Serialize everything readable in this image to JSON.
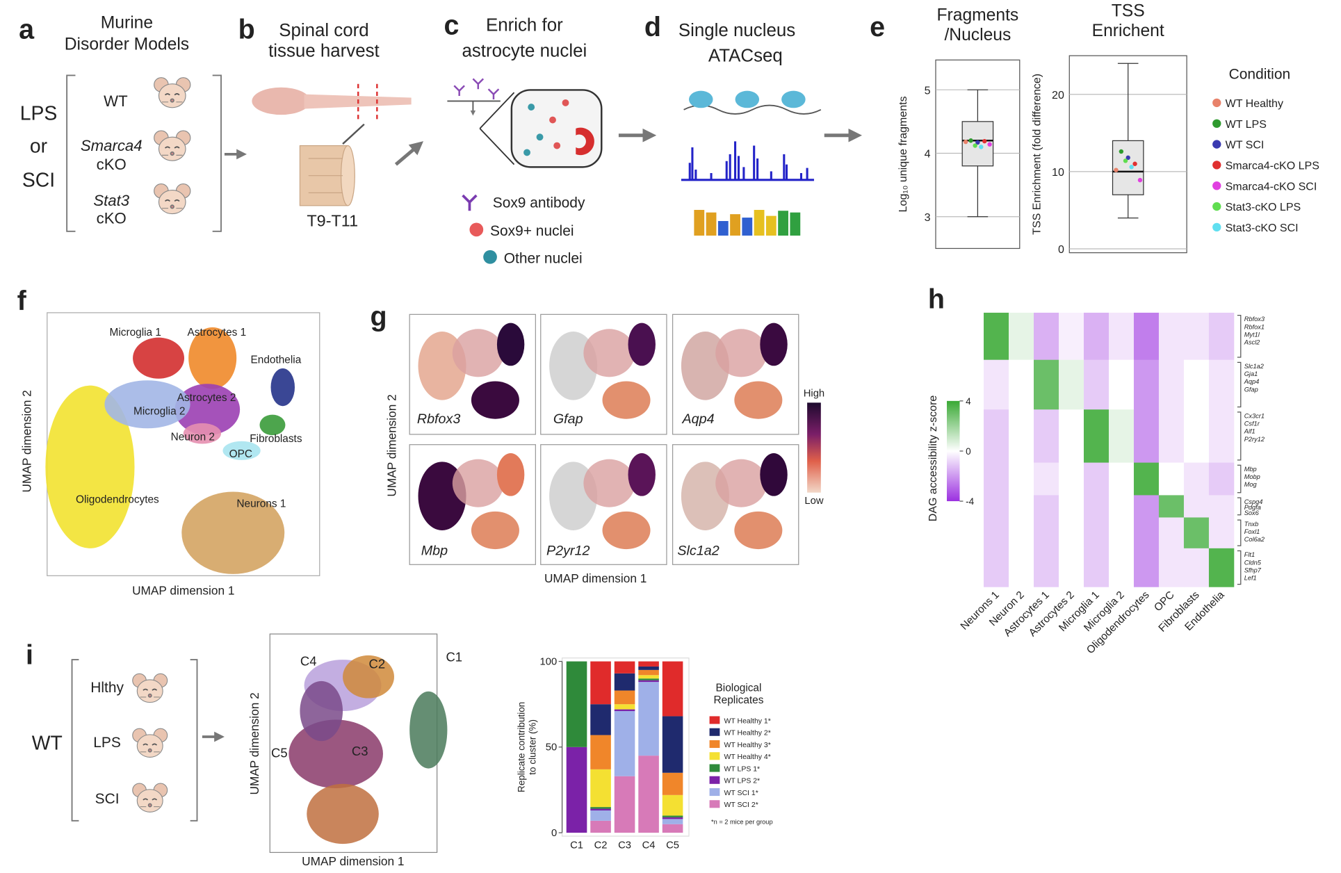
{
  "panel_letters": [
    "a",
    "b",
    "c",
    "d",
    "e",
    "f",
    "g",
    "h",
    "i"
  ],
  "a": {
    "title": [
      "Murine",
      "Disorder Models"
    ],
    "conditions": [
      "LPS",
      "or",
      "SCI"
    ],
    "models": [
      [
        "WT"
      ],
      [
        "Smarca4",
        "cKO"
      ],
      [
        "Stat3",
        "cKO"
      ]
    ]
  },
  "b": {
    "title": [
      "Spinal cord",
      "tissue harvest"
    ],
    "segment": "T9-T11"
  },
  "c": {
    "title": [
      "Enrich for",
      "astrocyte nuclei"
    ],
    "legend": [
      "Sox9 antibody",
      "Sox9+ nuclei",
      "Other nuclei"
    ]
  },
  "d": {
    "title": [
      "Single nucleus",
      "ATACseq"
    ]
  },
  "e_legend": {
    "title": "Condition",
    "items": [
      {
        "name": "WT Healthy",
        "color": "#e8826a"
      },
      {
        "name": "WT LPS",
        "color": "#2e9a2e"
      },
      {
        "name": "WT SCI",
        "color": "#3a3ab0"
      },
      {
        "name": "Smarca4-cKO LPS",
        "color": "#e03030"
      },
      {
        "name": "Smarca4-cKO SCI",
        "color": "#e040e0"
      },
      {
        "name": "Stat3-cKO LPS",
        "color": "#60dd50"
      },
      {
        "name": "Stat3-cKO SCI",
        "color": "#60dff0"
      }
    ]
  },
  "f": {
    "xlabel": "UMAP dimension 1",
    "ylabel": "UMAP dimension 2",
    "clusters": [
      "Microglia 1",
      "Astrocytes 1",
      "Endothelia",
      "Astrocytes 2",
      "Microglia 2",
      "Neuron 2",
      "Fibroblasts",
      "OPC",
      "Oligodendrocytes",
      "Neurons 1"
    ]
  },
  "g": {
    "genes": [
      "Rbfox3",
      "Gfap",
      "Aqp4",
      "Mbp",
      "P2yr12",
      "Slc1a2"
    ],
    "xlabel": "UMAP dimension 1",
    "ylabel": "UMAP dimension 2",
    "colorbar": [
      "High",
      "Low"
    ]
  },
  "i": {
    "group": "WT",
    "conditions": [
      "Hlthy",
      "LPS",
      "SCI"
    ],
    "umap": {
      "clusters": [
        "C4",
        "C2",
        "C1",
        "C5",
        "C3"
      ],
      "xlabel": "UMAP dimension 1",
      "ylabel": "UMAP dimension 2"
    }
  },
  "chart_data": [
    {
      "type": "box",
      "title": [
        "Fragments",
        "/Nucleus"
      ],
      "ylabel": "Log₁₀ unique fragments",
      "ylim": [
        2.5,
        5.47
      ],
      "yticks": [
        3,
        4,
        5
      ],
      "grid": true,
      "whiskers": [
        3.0,
        5.0
      ],
      "quartiles": [
        3.8,
        4.5
      ],
      "median": 4.2,
      "points": [
        4.18,
        4.2,
        4.17,
        4.19,
        4.14,
        4.12,
        4.1
      ]
    },
    {
      "type": "box",
      "title": [
        "TSS",
        "Enrichent"
      ],
      "ylabel": "TSS Enrichment (fold difference)",
      "ylim": [
        -0.5,
        25
      ],
      "yticks": [
        0,
        10,
        20
      ],
      "grid": true,
      "whiskers": [
        4,
        24
      ],
      "quartiles": [
        7,
        14
      ],
      "median": 10,
      "points": [
        10.2,
        12.6,
        11.8,
        11,
        8.9,
        11.4,
        10.6
      ]
    },
    {
      "type": "heatmap",
      "columns": [
        "Neurons 1",
        "Neuron 2",
        "Astrocytes 1",
        "Astrocytes 2",
        "Microglia 1",
        "Microglia 2",
        "Oligodendrocytes",
        "OPC",
        "Fibroblasts",
        "Endothelia"
      ],
      "row_groups": [
        [
          "Rbfox3",
          "Rbfox1",
          "Myt1l",
          "Ascl2"
        ],
        [
          "Slc1a2",
          "Gja1",
          "Aqp4",
          "Gfap"
        ],
        [
          "Cx3cr1",
          "Csf1r",
          "Aif1",
          "P2ry12"
        ],
        [
          "Mbp",
          "Mobp",
          "Mog"
        ],
        [
          "Cspg4",
          "Pdgfa",
          "Sox6"
        ],
        [
          "Tnxb",
          "Foxl1",
          "Col6a2"
        ],
        [
          "Flt1",
          "Cldn5",
          "Sfhp7",
          "Lef1"
        ]
      ],
      "values": [
        [
          3.5,
          0.5,
          -1.5,
          -0.3,
          -1.5,
          -0.5,
          -2.5,
          -0.5,
          -0.5,
          -1
        ],
        [
          -0.5,
          0,
          3,
          0.5,
          -1,
          0,
          -2,
          -0.5,
          0,
          -0.5
        ],
        [
          -1,
          0,
          -1,
          0,
          3.5,
          0.5,
          -2,
          -0.5,
          0,
          -0.5
        ],
        [
          -1,
          0,
          -0.5,
          0,
          -1,
          0,
          3.5,
          0,
          -0.5,
          -1
        ],
        [
          -1,
          0,
          -1,
          0,
          -1,
          0,
          -2,
          3,
          -0.5,
          -0.5
        ],
        [
          -1,
          0,
          -1,
          0,
          -1,
          0,
          -2,
          -0.5,
          3,
          -0.5
        ],
        [
          -1,
          0,
          -1,
          0,
          -1,
          0,
          -2,
          -0.5,
          -0.5,
          3.5
        ]
      ],
      "zlim": [
        -4,
        4
      ],
      "zticks": [
        4,
        0,
        -4
      ],
      "zlabel": "DAG accessibility z-score",
      "colors": [
        "#9b30e0",
        "#ffffff",
        "#3aa935"
      ]
    },
    {
      "type": "bar",
      "stacked": true,
      "categories": [
        "C1",
        "C2",
        "C3",
        "C4",
        "C5"
      ],
      "ylabel": [
        "Replicate contribution",
        "to cluster (%)"
      ],
      "ylim": [
        0,
        100
      ],
      "yticks": [
        0,
        50,
        100
      ],
      "legend_title": [
        "Biological",
        "Replicates"
      ],
      "note": "*n = 2 mice per group",
      "series": [
        {
          "name": "WT Healthy 1*",
          "color": "#e02b2b",
          "values": [
            0,
            25,
            7,
            3,
            32
          ]
        },
        {
          "name": "WT Healthy 2*",
          "color": "#1f2a6e",
          "values": [
            0,
            18,
            10,
            2,
            33
          ]
        },
        {
          "name": "WT Healthy 3*",
          "color": "#f0862a",
          "values": [
            0,
            20,
            8,
            3,
            13
          ]
        },
        {
          "name": "WT Healthy 4*",
          "color": "#f4e032",
          "values": [
            0,
            22,
            3,
            2,
            12
          ]
        },
        {
          "name": "WT LPS 1*",
          "color": "#2f8a3a",
          "values": [
            50,
            1,
            0,
            1,
            1
          ]
        },
        {
          "name": "WT LPS 2*",
          "color": "#7b22a8",
          "values": [
            50,
            1,
            1,
            1,
            1
          ]
        },
        {
          "name": "WT SCI 1*",
          "color": "#9fb0e8",
          "values": [
            0,
            6,
            38,
            43,
            3
          ]
        },
        {
          "name": "WT SCI 2*",
          "color": "#d77ab8",
          "values": [
            0,
            7,
            33,
            45,
            5
          ]
        }
      ]
    }
  ]
}
